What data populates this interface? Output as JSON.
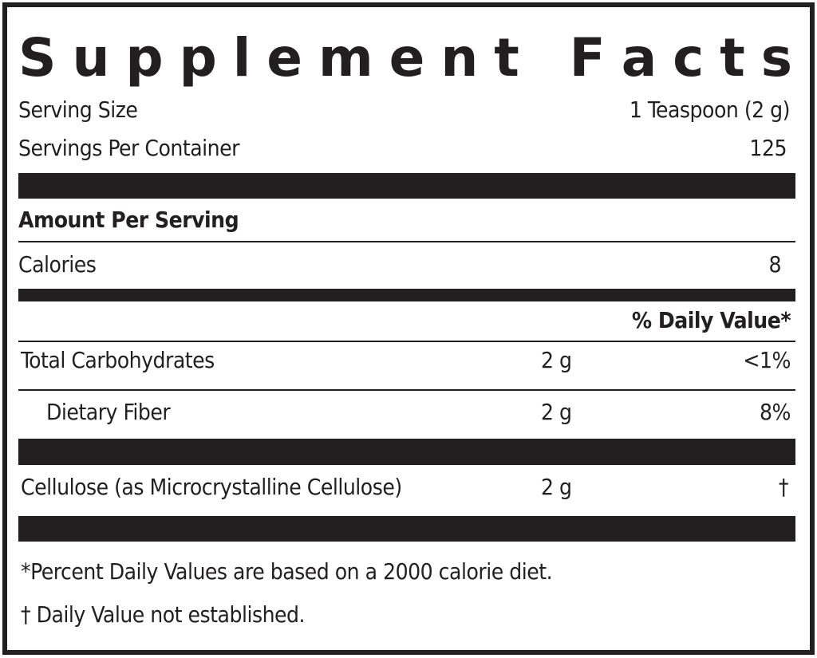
{
  "title": "Supplement Facts",
  "serving_size": {
    "label": "Serving Size",
    "value": "1 Teaspoon (2 g)"
  },
  "servings_per_container": {
    "label": "Servings Per Container",
    "value": "125"
  },
  "amount_per_serving": "Amount Per Serving",
  "calories": {
    "label": "Calories",
    "value": "8"
  },
  "daily_value_header": "% Daily Value*",
  "rows": [
    {
      "label": "Total Carbohydrates",
      "amount": "2 g",
      "dv": "<1%"
    },
    {
      "label": "Dietary Fiber",
      "amount": "2 g",
      "dv": "8%"
    },
    {
      "label": "Cellulose (as Microcrystalline Cellulose)",
      "amount": "2 g",
      "dv": "†"
    }
  ],
  "footnotes": [
    "*Percent Daily Values are based on a 2000 calorie diet.",
    "† Daily Value not established."
  ]
}
